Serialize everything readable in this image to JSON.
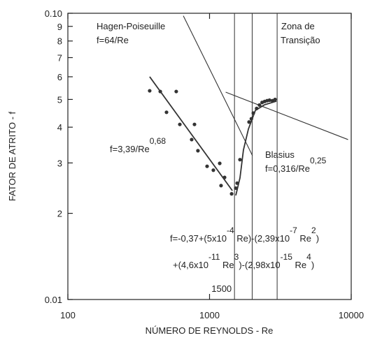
{
  "chart_data": {
    "type": "scatter",
    "x_label": "NÚMERO DE REYNOLDS - Re",
    "y_label": "FATOR DE ATRITO - f",
    "log_x": true,
    "log_y": true,
    "xlim": [
      100,
      10000
    ],
    "xticks": [
      100,
      1000,
      10000
    ],
    "ylim": [
      0.01,
      0.1
    ],
    "yticks": [
      {
        "value": 0.1,
        "label": "0.10"
      },
      {
        "value": 0.09,
        "label": "9"
      },
      {
        "value": 0.08,
        "label": "8"
      },
      {
        "value": 0.07,
        "label": "7"
      },
      {
        "value": 0.06,
        "label": "6"
      },
      {
        "value": 0.05,
        "label": "5"
      },
      {
        "value": 0.04,
        "label": "4"
      },
      {
        "value": 0.03,
        "label": "3"
      },
      {
        "value": 0.02,
        "label": "2"
      },
      0.01
    ],
    "color": "#333333",
    "x": [
      378,
      449,
      582,
      497,
      617,
      783,
      748,
      828,
      961,
      1064,
      1180,
      1277,
      1206,
      1432,
      1532,
      1567,
      1640,
      1901,
      1974,
      2037,
      2150,
      2250,
      2350,
      2450,
      2550,
      2650,
      2780,
      2900
    ],
    "values": [
      0.0536,
      0.0533,
      0.0533,
      0.0451,
      0.0409,
      0.0409,
      0.0362,
      0.0331,
      0.0292,
      0.0283,
      0.0299,
      0.0267,
      0.025,
      0.0234,
      0.0245,
      0.0255,
      0.0308,
      0.0417,
      0.0428,
      0.0448,
      0.0465,
      0.0478,
      0.0488,
      0.0492,
      0.0495,
      0.0497,
      0.0495,
      0.05
    ],
    "lines": [
      {
        "x": [
          653,
          2010
        ],
        "values": [
          0.098,
          0.0318
        ]
      },
      {
        "x": [
          1300,
          9500
        ],
        "values": [
          0.053,
          0.0362
        ]
      },
      {
        "x": [
          378,
          1450
        ],
        "values": [
          0.06,
          0.024
        ]
      },
      {
        "x": [
          1532,
          1640,
          1735,
          1881,
          2107,
          2444,
          2967
        ],
        "values": [
          0.0231,
          0.0266,
          0.0333,
          0.0394,
          0.0458,
          0.0479,
          0.0493
        ]
      }
    ],
    "vlines": [
      1500,
      2000,
      3000
    ],
    "annotations": [
      [
        "Hagen-Poiseuille"
      ],
      [
        "f=64/Re"
      ],
      [
        "Zona de"
      ],
      [
        "Transição"
      ],
      [
        "f=3,39/Re",
        "0,68"
      ],
      [
        "Blasius"
      ],
      [
        "f=0,316/Re",
        "0,25"
      ],
      [
        "f=-0,37+(5x10",
        "-4",
        " Re)-(2,39x10",
        "-7",
        " Re",
        "2",
        ")"
      ],
      [
        "+(4,6x10",
        "-11",
        " Re",
        "3",
        ")-(2,98x10",
        "-15",
        " Re",
        "4",
        ")"
      ]
    ]
  }
}
